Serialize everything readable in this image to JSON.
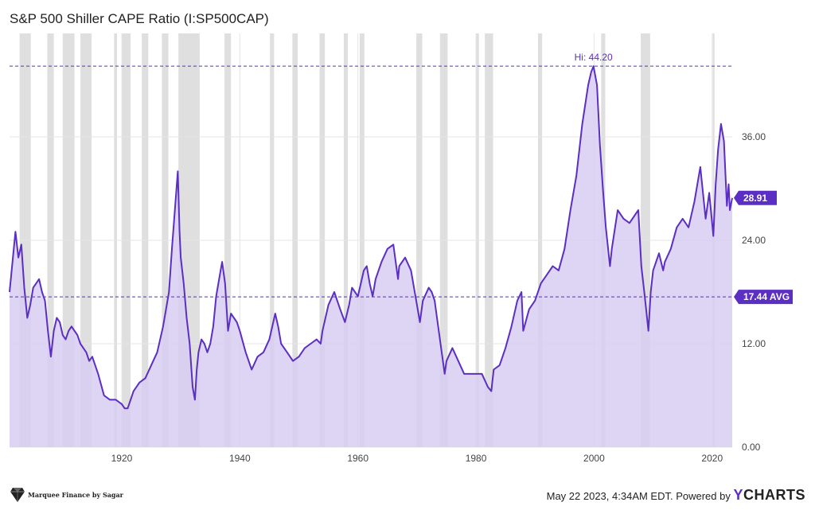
{
  "chart_data": {
    "type": "area",
    "title": "S&P 500 Shiller CAPE Ratio (I:SP500CAP)",
    "xlim": [
      1901,
      2023.4
    ],
    "ylim": [
      0,
      48
    ],
    "x_ticks": [
      1920,
      1940,
      1960,
      1980,
      2000,
      2020
    ],
    "y_ticks": [
      0,
      12,
      24,
      36
    ],
    "y_tick_labels": [
      "0.00",
      "12.00",
      "24.00",
      "36.00"
    ],
    "hi": {
      "value": 44.2,
      "label": "Hi: 44.20"
    },
    "avg": {
      "value": 17.44,
      "label": "17.44 AVG"
    },
    "last": {
      "value": 28.91,
      "label": "28.91"
    },
    "recessions": [
      [
        1902.7,
        1904.6
      ],
      [
        1907.4,
        1908.5
      ],
      [
        1910.0,
        1912.0
      ],
      [
        1913.0,
        1914.9
      ],
      [
        1918.7,
        1919.2
      ],
      [
        1920.0,
        1921.5
      ],
      [
        1923.4,
        1924.5
      ],
      [
        1926.8,
        1927.9
      ],
      [
        1929.6,
        1933.2
      ],
      [
        1937.4,
        1938.5
      ],
      [
        1945.1,
        1945.8
      ],
      [
        1948.9,
        1949.8
      ],
      [
        1953.5,
        1954.4
      ],
      [
        1957.6,
        1958.3
      ],
      [
        1960.3,
        1961.1
      ],
      [
        1969.9,
        1970.9
      ],
      [
        1973.9,
        1975.2
      ],
      [
        1980.0,
        1980.5
      ],
      [
        1981.5,
        1982.9
      ],
      [
        1990.5,
        1991.2
      ],
      [
        2001.2,
        2001.9
      ],
      [
        2007.9,
        2009.5
      ],
      [
        2020.1,
        2020.4
      ]
    ],
    "series": [
      {
        "points": [
          [
            1901.0,
            18.0
          ],
          [
            1901.5,
            21.5
          ],
          [
            1902.0,
            25.0
          ],
          [
            1902.5,
            22.0
          ],
          [
            1903.0,
            23.5
          ],
          [
            1903.5,
            18.5
          ],
          [
            1904.0,
            15.0
          ],
          [
            1904.5,
            16.5
          ],
          [
            1905.0,
            18.5
          ],
          [
            1905.5,
            19.0
          ],
          [
            1906.0,
            19.5
          ],
          [
            1906.5,
            18.0
          ],
          [
            1907.0,
            17.0
          ],
          [
            1907.5,
            13.5
          ],
          [
            1908.0,
            10.5
          ],
          [
            1908.5,
            13.5
          ],
          [
            1909.0,
            15.0
          ],
          [
            1909.5,
            14.5
          ],
          [
            1910.0,
            13.0
          ],
          [
            1910.5,
            12.5
          ],
          [
            1911.0,
            13.5
          ],
          [
            1911.5,
            14.0
          ],
          [
            1912.0,
            13.5
          ],
          [
            1912.5,
            13.0
          ],
          [
            1913.0,
            12.0
          ],
          [
            1913.5,
            11.5
          ],
          [
            1914.0,
            11.0
          ],
          [
            1914.5,
            10.0
          ],
          [
            1915.0,
            10.5
          ],
          [
            1916.0,
            8.5
          ],
          [
            1917.0,
            6.0
          ],
          [
            1918.0,
            5.5
          ],
          [
            1919.0,
            5.5
          ],
          [
            1920.0,
            5.0
          ],
          [
            1920.5,
            4.5
          ],
          [
            1921.0,
            4.5
          ],
          [
            1921.5,
            5.5
          ],
          [
            1922.0,
            6.5
          ],
          [
            1923.0,
            7.5
          ],
          [
            1924.0,
            8.0
          ],
          [
            1925.0,
            9.5
          ],
          [
            1926.0,
            11.0
          ],
          [
            1927.0,
            14.0
          ],
          [
            1928.0,
            18.0
          ],
          [
            1928.5,
            23.0
          ],
          [
            1929.0,
            27.5
          ],
          [
            1929.5,
            32.0
          ],
          [
            1929.8,
            25.0
          ],
          [
            1930.0,
            22.0
          ],
          [
            1930.5,
            19.0
          ],
          [
            1931.0,
            15.0
          ],
          [
            1931.5,
            12.0
          ],
          [
            1932.0,
            7.0
          ],
          [
            1932.4,
            5.5
          ],
          [
            1932.7,
            9.0
          ],
          [
            1933.0,
            11.0
          ],
          [
            1933.5,
            12.5
          ],
          [
            1934.0,
            12.0
          ],
          [
            1934.5,
            11.0
          ],
          [
            1935.0,
            12.0
          ],
          [
            1935.5,
            14.0
          ],
          [
            1936.0,
            17.5
          ],
          [
            1936.5,
            19.5
          ],
          [
            1937.0,
            21.5
          ],
          [
            1937.5,
            19.0
          ],
          [
            1938.0,
            13.5
          ],
          [
            1938.5,
            15.5
          ],
          [
            1939.0,
            15.0
          ],
          [
            1939.5,
            14.5
          ],
          [
            1940.0,
            13.5
          ],
          [
            1941.0,
            11.0
          ],
          [
            1942.0,
            9.0
          ],
          [
            1943.0,
            10.5
          ],
          [
            1944.0,
            11.0
          ],
          [
            1945.0,
            12.5
          ],
          [
            1946.0,
            15.5
          ],
          [
            1946.5,
            14.0
          ],
          [
            1947.0,
            12.0
          ],
          [
            1948.0,
            11.0
          ],
          [
            1949.0,
            10.0
          ],
          [
            1950.0,
            10.5
          ],
          [
            1951.0,
            11.5
          ],
          [
            1952.0,
            12.0
          ],
          [
            1953.0,
            12.5
          ],
          [
            1953.7,
            12.0
          ],
          [
            1954.0,
            13.5
          ],
          [
            1955.0,
            16.5
          ],
          [
            1956.0,
            18.0
          ],
          [
            1957.0,
            16.0
          ],
          [
            1957.8,
            14.5
          ],
          [
            1958.5,
            16.5
          ],
          [
            1959.0,
            18.5
          ],
          [
            1960.0,
            17.5
          ],
          [
            1961.0,
            20.5
          ],
          [
            1961.5,
            21.0
          ],
          [
            1962.0,
            19.0
          ],
          [
            1962.5,
            17.5
          ],
          [
            1963.0,
            19.5
          ],
          [
            1964.0,
            21.5
          ],
          [
            1965.0,
            23.0
          ],
          [
            1966.0,
            23.5
          ],
          [
            1966.8,
            19.5
          ],
          [
            1967.0,
            21.0
          ],
          [
            1968.0,
            22.0
          ],
          [
            1969.0,
            20.5
          ],
          [
            1970.0,
            16.5
          ],
          [
            1970.5,
            14.5
          ],
          [
            1971.0,
            17.0
          ],
          [
            1972.0,
            18.5
          ],
          [
            1972.5,
            18.0
          ],
          [
            1973.0,
            17.0
          ],
          [
            1974.0,
            12.0
          ],
          [
            1974.7,
            8.5
          ],
          [
            1975.0,
            10.0
          ],
          [
            1976.0,
            11.5
          ],
          [
            1977.0,
            10.0
          ],
          [
            1978.0,
            8.5
          ],
          [
            1979.0,
            8.5
          ],
          [
            1980.0,
            8.5
          ],
          [
            1981.0,
            8.5
          ],
          [
            1982.0,
            7.0
          ],
          [
            1982.6,
            6.5
          ],
          [
            1983.0,
            9.0
          ],
          [
            1984.0,
            9.5
          ],
          [
            1985.0,
            11.5
          ],
          [
            1986.0,
            14.0
          ],
          [
            1987.0,
            17.0
          ],
          [
            1987.7,
            18.0
          ],
          [
            1988.0,
            13.5
          ],
          [
            1989.0,
            16.0
          ],
          [
            1990.0,
            17.0
          ],
          [
            1991.0,
            19.0
          ],
          [
            1992.0,
            20.0
          ],
          [
            1993.0,
            21.0
          ],
          [
            1994.0,
            20.5
          ],
          [
            1995.0,
            23.0
          ],
          [
            1996.0,
            27.5
          ],
          [
            1997.0,
            31.5
          ],
          [
            1998.0,
            37.5
          ],
          [
            1999.0,
            42.0
          ],
          [
            1999.5,
            43.5
          ],
          [
            1999.9,
            44.2
          ],
          [
            2000.5,
            42.0
          ],
          [
            2001.0,
            35.0
          ],
          [
            2001.5,
            30.0
          ],
          [
            2002.0,
            25.5
          ],
          [
            2002.7,
            21.0
          ],
          [
            2003.0,
            23.0
          ],
          [
            2004.0,
            27.5
          ],
          [
            2005.0,
            26.5
          ],
          [
            2006.0,
            26.0
          ],
          [
            2007.0,
            27.0
          ],
          [
            2007.5,
            27.5
          ],
          [
            2008.0,
            21.0
          ],
          [
            2008.5,
            18.0
          ],
          [
            2009.2,
            13.5
          ],
          [
            2009.6,
            18.0
          ],
          [
            2010.0,
            20.5
          ],
          [
            2011.0,
            22.5
          ],
          [
            2011.7,
            20.5
          ],
          [
            2012.0,
            21.5
          ],
          [
            2013.0,
            23.0
          ],
          [
            2014.0,
            25.5
          ],
          [
            2015.0,
            26.5
          ],
          [
            2016.0,
            25.5
          ],
          [
            2017.0,
            28.5
          ],
          [
            2018.0,
            32.5
          ],
          [
            2018.9,
            26.5
          ],
          [
            2019.5,
            29.5
          ],
          [
            2020.2,
            24.5
          ],
          [
            2020.6,
            30.5
          ],
          [
            2021.0,
            34.5
          ],
          [
            2021.5,
            37.5
          ],
          [
            2022.0,
            35.5
          ],
          [
            2022.5,
            28.0
          ],
          [
            2022.8,
            30.5
          ],
          [
            2023.0,
            27.5
          ],
          [
            2023.4,
            28.91
          ]
        ]
      }
    ]
  },
  "footer": {
    "timestamp": "May 22 2023, 4:34AM EDT. Powered by",
    "brand_y": "Y",
    "brand_rest": "CHARTS",
    "watermark": "Marquee Finance by Sagar"
  },
  "colors": {
    "line": "#5b2fc4",
    "fill": "#d8ccf1",
    "recession": "#dcdcdc",
    "grid": "#e6e6e6",
    "axis_text": "#444444"
  }
}
